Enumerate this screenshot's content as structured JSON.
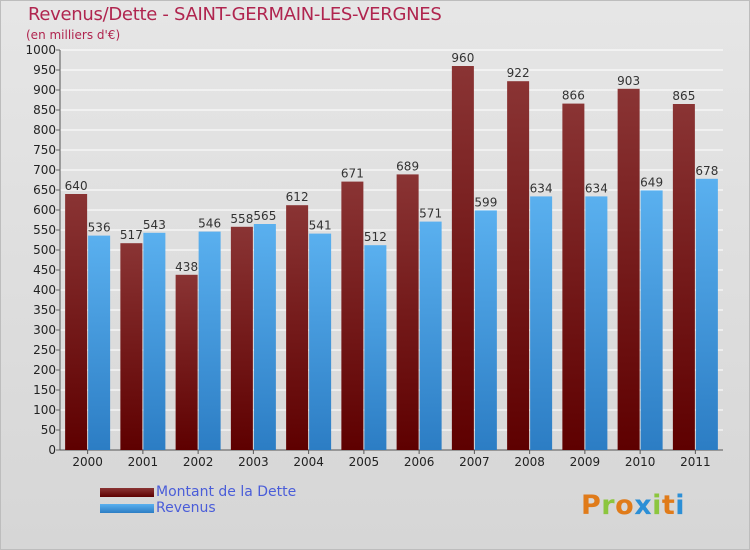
{
  "header": {
    "title": "Revenus/Dette - SAINT-GERMAIN-LES-VERGNES",
    "subtitle": "(en milliers d'€)"
  },
  "colors": {
    "debt_top": "#8a3434",
    "debt_bottom": "#5e0000",
    "revenue_top": "#5ab0ef",
    "revenue_bottom": "#2c7dc4",
    "title": "#b0254f",
    "legend_text": "#4a5dd9",
    "grid": "#ffffff"
  },
  "legend": [
    {
      "label": "Montant de la Dette",
      "color": "#6a0c0c"
    },
    {
      "label": "Revenus",
      "color": "#4aa3e6"
    }
  ],
  "logo": {
    "letters": [
      "P",
      "r",
      "o",
      "x",
      "i",
      "t",
      "i"
    ],
    "colors": [
      "#e07b1a",
      "#8cc63e",
      "#e07b1a",
      "#2c8fd6",
      "#8cc63e",
      "#e07b1a",
      "#2c8fd6"
    ]
  },
  "chart_data": {
    "type": "bar",
    "title": "Revenus/Dette - SAINT-GERMAIN-LES-VERGNES",
    "subtitle": "(en milliers d'€)",
    "categories": [
      "2000",
      "2001",
      "2002",
      "2003",
      "2004",
      "2005",
      "2006",
      "2007",
      "2008",
      "2009",
      "2010",
      "2011"
    ],
    "series": [
      {
        "name": "Montant de la Dette",
        "values": [
          640,
          517,
          438,
          558,
          612,
          671,
          689,
          960,
          922,
          866,
          903,
          865
        ]
      },
      {
        "name": "Revenus",
        "values": [
          536,
          543,
          546,
          565,
          541,
          512,
          571,
          599,
          634,
          634,
          649,
          678
        ]
      }
    ],
    "ylim": [
      0,
      1000
    ],
    "ytick_step": 50,
    "grid": true,
    "legend_position": "bottom-left"
  }
}
